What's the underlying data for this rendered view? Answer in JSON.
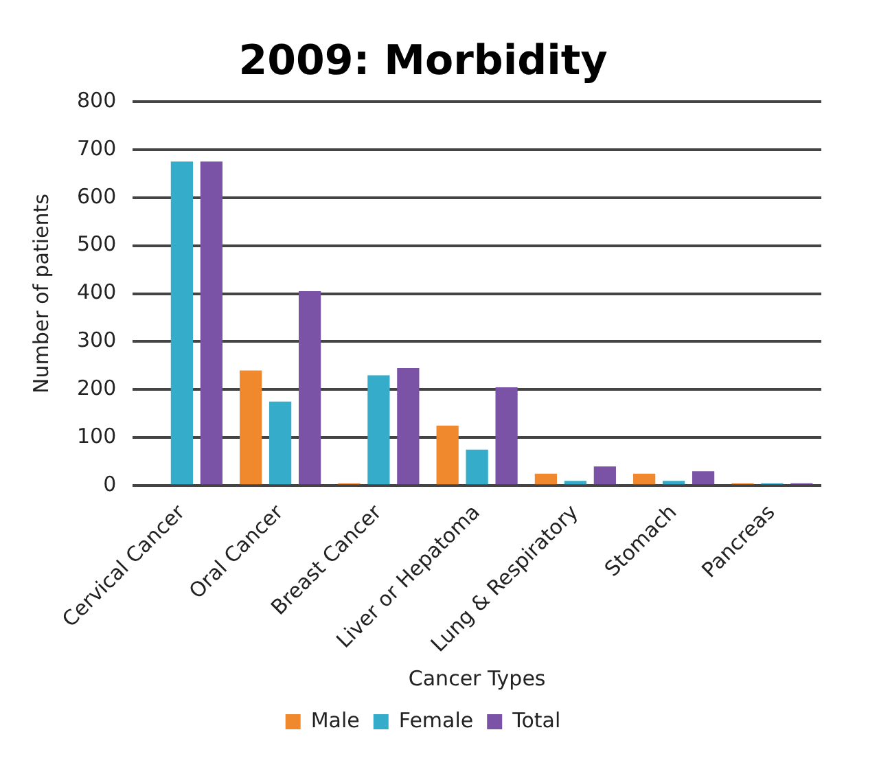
{
  "chart_data": {
    "type": "bar",
    "title": "2009: Morbidity",
    "xlabel": "Cancer Types",
    "ylabel": "Number of patients",
    "categories": [
      "Cervical Cancer",
      "Oral Cancer",
      "Breast Cancer",
      "Liver or Hepatoma",
      "Lung & Respiratory",
      "Stomach",
      "Pancreas"
    ],
    "series": [
      {
        "name": "Male",
        "color": "#f0892e",
        "values": [
          0,
          240,
          5,
          125,
          25,
          25,
          5
        ]
      },
      {
        "name": "Female",
        "color": "#35acc9",
        "values": [
          675,
          175,
          230,
          75,
          10,
          10,
          5
        ]
      },
      {
        "name": "Total",
        "color": "#7a52a6",
        "values": [
          675,
          405,
          245,
          205,
          40,
          30,
          5
        ]
      }
    ],
    "ylim": [
      0,
      800
    ],
    "yticks": [
      0,
      100,
      200,
      300,
      400,
      500,
      600,
      700,
      800
    ],
    "grid": "y",
    "legend": "bottom"
  }
}
